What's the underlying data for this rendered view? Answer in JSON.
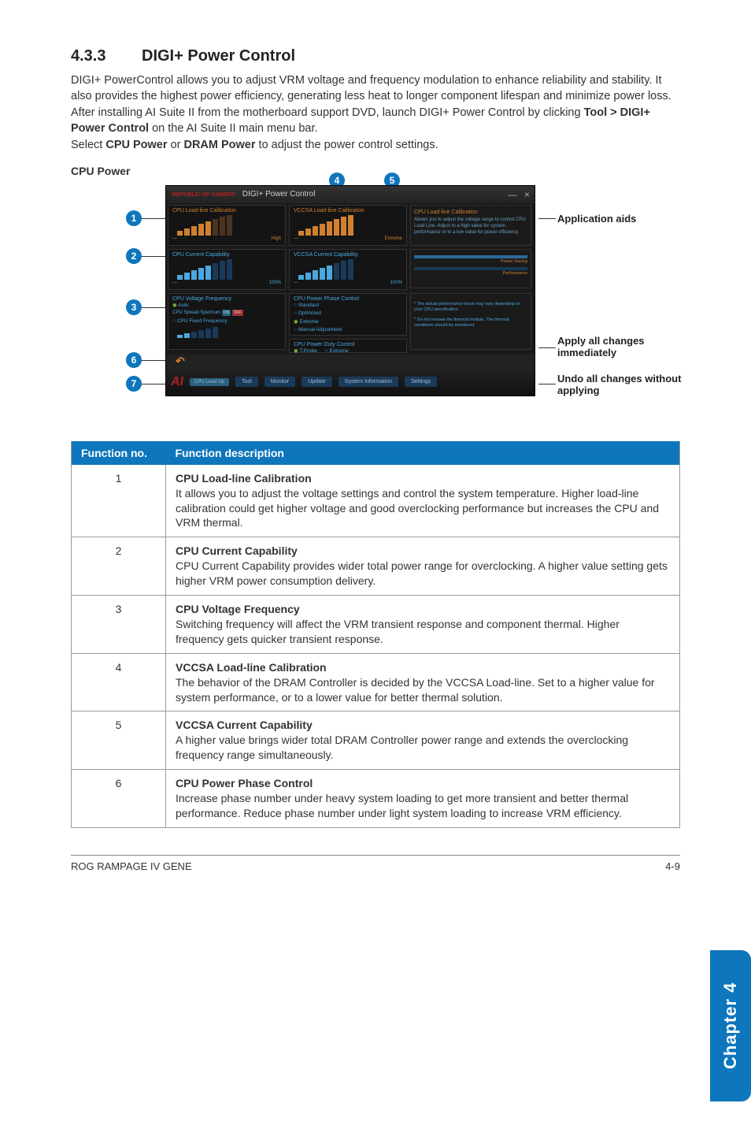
{
  "colors": {
    "accent": "#0e76bc",
    "text": "#333333",
    "panel_bg": "#141414",
    "panel_border": "#333333",
    "cyan": "#4aa8e0",
    "orange": "#d08030",
    "rog_red": "#b02020"
  },
  "heading": {
    "number": "4.3.3",
    "title": "DIGI+ Power Control"
  },
  "intro": {
    "p1": "DIGI+ PowerControl allows you to adjust VRM voltage and frequency modulation to enhance reliability and stability. It also provides the highest power efficiency, generating less heat to longer component lifespan and minimize power loss.",
    "p2a": "After installing AI Suite II from the motherboard support DVD, launch DIGI+ Power Control by clicking ",
    "p2b": "Tool > DIGI+ Power Control",
    "p2c": " on the AI Suite II main menu bar.",
    "p3a": "Select ",
    "p3b": "CPU Power",
    "p3c": " or ",
    "p3d": "DRAM Power",
    "p3e": " to adjust the power control settings."
  },
  "cpu_power_label": "CPU Power",
  "screenshot": {
    "title": "DIGI+ Power Control",
    "rog": "REPUBLIC OF GAMERS",
    "panels": {
      "cpu_load": "CPU Load-line Calibration",
      "vccsa_load": "VCCSA Load-line Calibration",
      "cpu_cur": "CPU Current Capability",
      "vccsa_cur": "VCCSA Current Capability",
      "cpu_vfreq": "CPU Voltage Frequency",
      "cpu_phase": "CPU Power Phase Control",
      "cpu_duty": "CPU Power Duty Control",
      "scale_high": "High",
      "scale_extreme": "Extreme",
      "scale_100a": "100%",
      "scale_100b": "100%",
      "vfreq_auto": "Auto",
      "vfreq_spread": "CPU Spread Spectrum",
      "vfreq_on": "ON",
      "vfreq_off": "OFF",
      "vfreq_fixed": "CPU Fixed Frequency",
      "phase_std": "Standard",
      "phase_opt": "Optimized",
      "phase_ext": "Extreme",
      "phase_man": "Manual Adjustment",
      "duty_tprobe": "T.Probe",
      "duty_ext": "Extreme"
    },
    "help": {
      "title": "CPU Load-line Calibration",
      "body": "Allows you to adjust the voltage range to control CPU Load Line. Adjust to a high value for system performance or to a low value for power efficiency.",
      "legend1": "Power Saving",
      "legend2": "Performance",
      "note1": "* The actual performance boost may vary depending on your CPU specification.",
      "note2": "* Do not remove the thermal module. The thermal conditions should be monitored."
    },
    "aibar": {
      "level": "CPU Level Up",
      "tool": "Tool",
      "monitor": "Monitor",
      "update": "Update",
      "sysinfo": "System Information",
      "settings": "Settings"
    }
  },
  "callouts": {
    "application_aids": "Application aids",
    "apply": "Apply all changes immediately",
    "undo": "Undo all changes without applying"
  },
  "table": {
    "head_no": "Function no.",
    "head_desc": "Function description",
    "rows": [
      {
        "n": "1",
        "title": "CPU Load-line Calibration",
        "body": "It allows you to adjust the voltage settings and control the system temperature. Higher load-line calibration could get higher voltage and good overclocking performance but increases the CPU and VRM thermal."
      },
      {
        "n": "2",
        "title": "CPU Current Capability",
        "body": "CPU Current Capability provides wider total power range for overclocking. A higher value setting gets higher VRM power consumption delivery."
      },
      {
        "n": "3",
        "title": "CPU Voltage Frequency",
        "body": "Switching frequency will affect the VRM transient response and component thermal. Higher frequency gets quicker transient response."
      },
      {
        "n": "4",
        "title": "VCCSA Load-line Calibration",
        "body": "The behavior of the DRAM Controller is decided by the VCCSA Load-line. Set to a higher value for system performance, or to a lower value for better thermal solution."
      },
      {
        "n": "5",
        "title": "VCCSA Current Capability",
        "body": "A higher value brings wider total DRAM Controller power range and extends the overclocking frequency range simultaneously."
      },
      {
        "n": "6",
        "title": "CPU Power Phase Control",
        "body": "Increase phase number under heavy system loading to get more transient and better thermal performance. Reduce phase number under light system loading to increase VRM efficiency."
      }
    ]
  },
  "side_tab": "Chapter 4",
  "footer": {
    "left": "ROG RAMPAGE IV GENE",
    "right": "4-9"
  }
}
